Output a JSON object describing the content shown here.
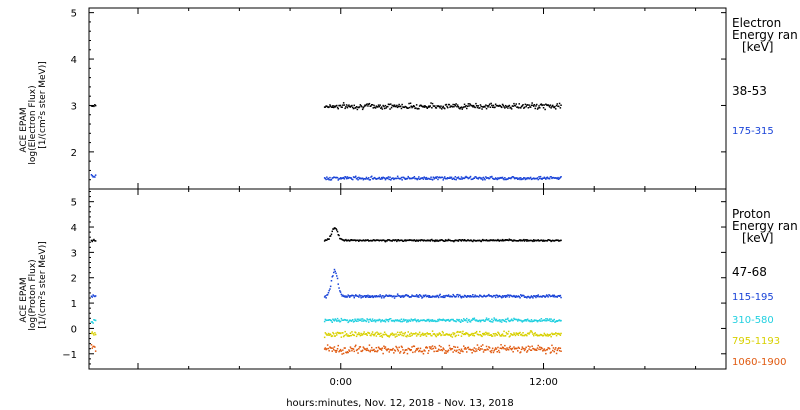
{
  "figure": {
    "xlabel": "hours:minutes, Nov. 12, 2018 - Nov. 13, 2018"
  },
  "chart_data": [
    {
      "type": "scatter",
      "panel": "electron",
      "ylabel": [
        "ACE EPAM",
        "log(Electron Flux)",
        "[1/(cm²s ster MeV)]"
      ],
      "ylim": [
        1.2,
        5.1
      ],
      "y_ticks": [
        2,
        3,
        4,
        5
      ],
      "x_ticks": [
        "0:00",
        "12:00"
      ],
      "legend_title": [
        "Electron",
        "Energy ran",
        "[keV]"
      ],
      "legend_position": "right",
      "series": [
        {
          "name": "38-53",
          "color": "#000000",
          "level": 3.0,
          "noise": 0.05,
          "x_range_h": [
            -1.0,
            13.0
          ],
          "pre_level": 3.0
        },
        {
          "name": "175-315",
          "color": "#1a44d8",
          "level": 1.45,
          "noise": 0.03,
          "x_range_h": [
            -1.0,
            13.0
          ],
          "pre_level": 1.5
        }
      ]
    },
    {
      "type": "scatter",
      "panel": "proton",
      "ylabel": [
        "ACE EPAM",
        "log(Proton Flux)",
        "[1/(cm²s ster MeV)]"
      ],
      "ylim": [
        -1.6,
        5.5
      ],
      "y_ticks": [
        -1,
        0,
        1,
        2,
        3,
        4,
        5
      ],
      "x_ticks": [
        "0:00",
        "12:00"
      ],
      "legend_title": [
        "Proton",
        "Energy ran",
        "[keV]"
      ],
      "legend_position": "right",
      "series": [
        {
          "name": "47-68",
          "color": "#000000",
          "level": 3.5,
          "noise": 0.03,
          "x_range_h": [
            -1.0,
            13.0
          ],
          "pre_level": 3.5,
          "spike_peak": 4.0
        },
        {
          "name": "115-195",
          "color": "#1a44d8",
          "level": 1.3,
          "noise": 0.05,
          "x_range_h": [
            -1.0,
            13.0
          ],
          "pre_level": 1.3,
          "spike_peak": 2.3
        },
        {
          "name": "310-580",
          "color": "#22d0e0",
          "level": 0.35,
          "noise": 0.06,
          "x_range_h": [
            -1.0,
            13.0
          ],
          "pre_level": 0.3
        },
        {
          "name": "795-1193",
          "color": "#d8d000",
          "level": -0.2,
          "noise": 0.09,
          "x_range_h": [
            -1.0,
            13.0
          ],
          "pre_level": -0.2
        },
        {
          "name": "1060-1900",
          "color": "#e05a10",
          "level": -0.8,
          "noise": 0.13,
          "x_range_h": [
            -1.0,
            13.0
          ],
          "pre_level": -0.7
        }
      ]
    }
  ]
}
